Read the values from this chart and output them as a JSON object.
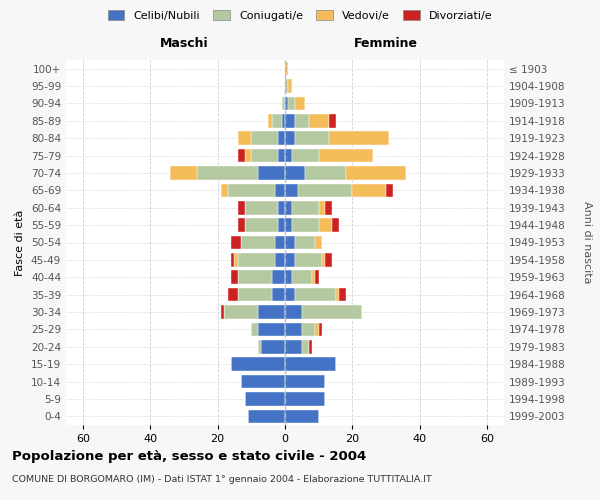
{
  "age_groups": [
    "0-4",
    "5-9",
    "10-14",
    "15-19",
    "20-24",
    "25-29",
    "30-34",
    "35-39",
    "40-44",
    "45-49",
    "50-54",
    "55-59",
    "60-64",
    "65-69",
    "70-74",
    "75-79",
    "80-84",
    "85-89",
    "90-94",
    "95-99",
    "100+"
  ],
  "birth_years": [
    "1999-2003",
    "1994-1998",
    "1989-1993",
    "1984-1988",
    "1979-1983",
    "1974-1978",
    "1969-1973",
    "1964-1968",
    "1959-1963",
    "1954-1958",
    "1949-1953",
    "1944-1948",
    "1939-1943",
    "1934-1938",
    "1929-1933",
    "1924-1928",
    "1919-1923",
    "1914-1918",
    "1909-1913",
    "1904-1908",
    "≤ 1903"
  ],
  "colors": {
    "celibi": "#4472c4",
    "coniugati": "#b5c9a0",
    "vedovi": "#f5bc5a",
    "divorziati": "#cc2222"
  },
  "maschi": {
    "celibi": [
      11,
      12,
      13,
      16,
      7,
      8,
      8,
      4,
      4,
      3,
      3,
      2,
      2,
      3,
      8,
      2,
      2,
      1,
      0,
      0,
      0
    ],
    "coniugati": [
      0,
      0,
      0,
      0,
      1,
      2,
      10,
      10,
      10,
      11,
      10,
      10,
      10,
      14,
      18,
      8,
      8,
      3,
      1,
      0,
      0
    ],
    "vedovi": [
      0,
      0,
      0,
      0,
      0,
      0,
      0,
      0,
      0,
      1,
      0,
      0,
      0,
      2,
      8,
      2,
      4,
      1,
      0,
      0,
      0
    ],
    "divorziati": [
      0,
      0,
      0,
      0,
      0,
      0,
      1,
      3,
      2,
      1,
      3,
      2,
      2,
      0,
      0,
      2,
      0,
      0,
      0,
      0,
      0
    ]
  },
  "femmine": {
    "celibi": [
      10,
      12,
      12,
      15,
      5,
      5,
      5,
      3,
      2,
      3,
      3,
      2,
      2,
      4,
      6,
      2,
      3,
      3,
      1,
      0,
      0
    ],
    "coniugati": [
      0,
      0,
      0,
      0,
      2,
      4,
      18,
      12,
      6,
      8,
      6,
      8,
      8,
      16,
      12,
      8,
      10,
      4,
      2,
      1,
      0
    ],
    "vedovi": [
      0,
      0,
      0,
      0,
      0,
      1,
      0,
      1,
      1,
      1,
      2,
      4,
      2,
      10,
      18,
      16,
      18,
      6,
      3,
      1,
      1
    ],
    "divorziati": [
      0,
      0,
      0,
      0,
      1,
      1,
      0,
      2,
      1,
      2,
      0,
      2,
      2,
      2,
      0,
      0,
      0,
      2,
      0,
      0,
      0
    ]
  },
  "xlim": 65,
  "title": "Popolazione per età, sesso e stato civile - 2004",
  "subtitle": "COMUNE DI BORGOMARO (IM) - Dati ISTAT 1° gennaio 2004 - Elaborazione TUTTITALIA.IT",
  "ylabel_left": "Fasce di età",
  "ylabel_right": "Anni di nascita",
  "label_maschi": "Maschi",
  "label_femmine": "Femmine",
  "legend_labels": [
    "Celibi/Nubili",
    "Coniugati/e",
    "Vedovi/e",
    "Divorziati/e"
  ],
  "bg_color": "#f7f7f7",
  "plot_bg": "#ffffff"
}
